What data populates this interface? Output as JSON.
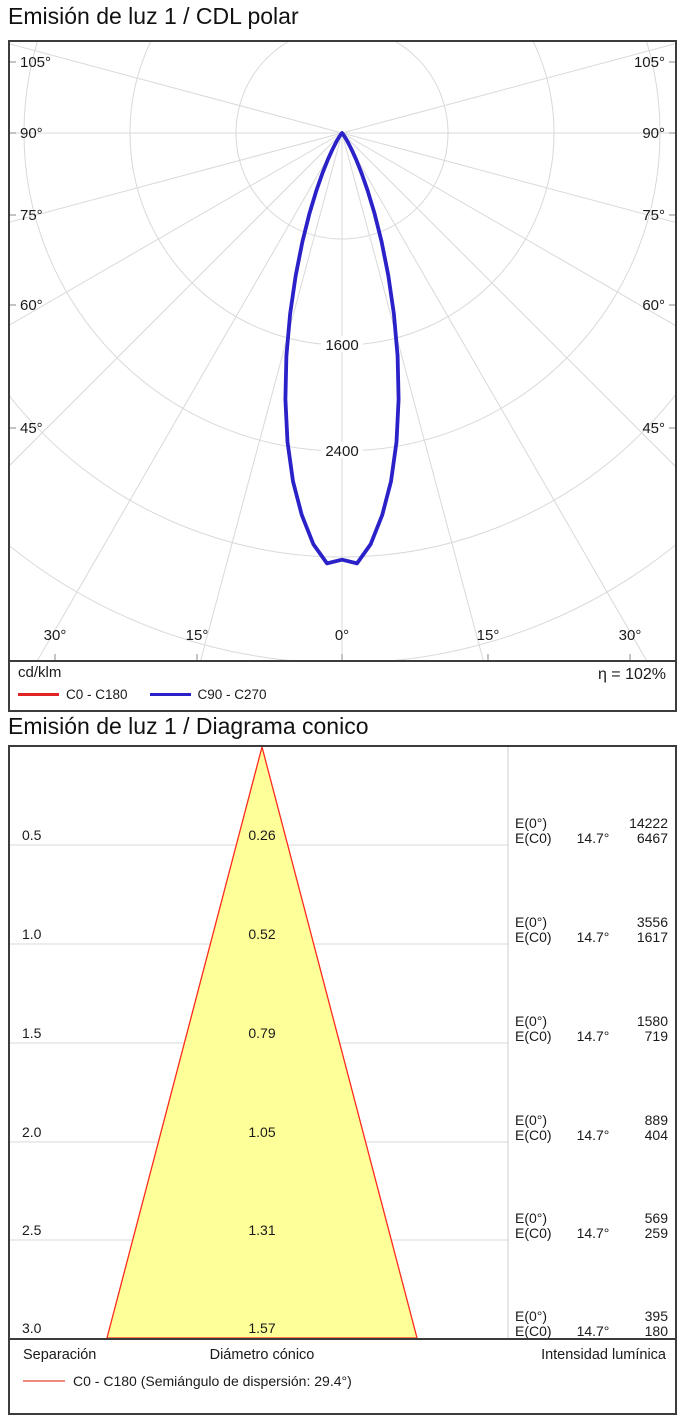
{
  "colors": {
    "curve_c0_c180": "#e02424",
    "curve_c90_c270": "#2a22c8",
    "cone_fill": "#ffff99",
    "cone_stroke": "#fb2b1c",
    "cone_legend_line": "#ee8a7e",
    "grid": "#d9d9d9",
    "frame": "#3c3c3c"
  },
  "polar": {
    "title": "Emisión de luz 1 / CDL polar",
    "unit_label": "cd/klm",
    "efficiency": "η = 102%",
    "legend": [
      {
        "label": "C0 - C180",
        "color": "#e02424"
      },
      {
        "label": "C90 - C270",
        "color": "#2a22c8"
      }
    ],
    "angle_labels_left": [
      "105°",
      "90°",
      "75°",
      "60°",
      "45°"
    ],
    "angle_labels_right": [
      "105°",
      "90°",
      "75°",
      "60°",
      "45°"
    ],
    "angle_labels_bottom": [
      "30°",
      "15°",
      "0°",
      "15°",
      "30°"
    ],
    "ring_labels": [
      {
        "label": "1600",
        "value": 1600
      },
      {
        "label": "2400",
        "value": 2400
      }
    ]
  },
  "cone": {
    "title": "Emisión de luz 1 / Diagrama conico",
    "e0_label": "E(0°)",
    "ec0_label": "E(C0)",
    "rows": [
      {
        "separation": "0.5",
        "diameter": "0.26",
        "angle": "14.7°",
        "e0": "14222",
        "ec0": "6467"
      },
      {
        "separation": "1.0",
        "diameter": "0.52",
        "angle": "14.7°",
        "e0": "3556",
        "ec0": "1617"
      },
      {
        "separation": "1.5",
        "diameter": "0.79",
        "angle": "14.7°",
        "e0": "1580",
        "ec0": "719"
      },
      {
        "separation": "2.0",
        "diameter": "1.05",
        "angle": "14.7°",
        "e0": "889",
        "ec0": "404"
      },
      {
        "separation": "2.5",
        "diameter": "1.31",
        "angle": "14.7°",
        "e0": "569",
        "ec0": "259"
      },
      {
        "separation": "3.0",
        "diameter": "1.57",
        "angle": "14.7°",
        "e0": "395",
        "ec0": "180"
      }
    ],
    "footer": {
      "separation": "Separación",
      "diameter": "Diámetro cónico",
      "intensity": "Intensidad lumínica"
    },
    "legend_label": "C0 - C180 (Semiángulo de dispersión: 29.4°)"
  },
  "chart_data": [
    {
      "type": "line",
      "subtype": "polar-intensity-curve",
      "title": "Emisión de luz 1 / CDL polar",
      "units": "cd/klm",
      "efficiency_percent": 102,
      "angle_grid_deg": [
        0,
        15,
        30,
        45,
        60,
        75,
        90,
        105
      ],
      "ring_values_cd_klm": [
        800,
        1600,
        2400,
        3200,
        4000
      ],
      "labeled_rings": [
        1600,
        2400
      ],
      "series": [
        {
          "name": "C0 - C180",
          "color": "#e02424",
          "gamma_deg": [
            0,
            2,
            4,
            6,
            8,
            10,
            12,
            14,
            16,
            18,
            20,
            22,
            24,
            26,
            28,
            30,
            32,
            34,
            36,
            38,
            40,
            42,
            45
          ],
          "intensity_cd_klm": [
            3220,
            3250,
            3110,
            2900,
            2655,
            2368,
            2055,
            1734,
            1421,
            1131,
            873,
            654,
            475,
            334,
            228,
            150,
            96,
            59,
            35,
            20,
            11,
            6,
            0
          ]
        },
        {
          "name": "C90 - C270",
          "color": "#2a22c8",
          "gamma_deg": [
            0,
            2,
            4,
            6,
            8,
            10,
            12,
            14,
            16,
            18,
            20,
            22,
            24,
            26,
            28,
            30,
            32,
            34,
            36,
            38,
            40,
            42,
            45
          ],
          "intensity_cd_klm": [
            3220,
            3250,
            3110,
            2900,
            2655,
            2368,
            2055,
            1734,
            1421,
            1131,
            873,
            654,
            475,
            334,
            228,
            150,
            96,
            59,
            35,
            20,
            11,
            6,
            0
          ]
        }
      ]
    },
    {
      "type": "table",
      "subtype": "cone-diagram",
      "title": "Emisión de luz 1 / Diagrama conico",
      "beam_half_angle_deg": 14.7,
      "semiangle_dispersion_deg": 29.4,
      "columns": [
        "Separación (m)",
        "Diámetro cónico (m)",
        "E(0°) (lx)",
        "E(C0) (lx)"
      ],
      "rows": [
        [
          0.5,
          0.26,
          14222,
          6467
        ],
        [
          1.0,
          0.52,
          3556,
          1617
        ],
        [
          1.5,
          0.79,
          1580,
          719
        ],
        [
          2.0,
          1.05,
          889,
          404
        ],
        [
          2.5,
          1.31,
          569,
          259
        ],
        [
          3.0,
          1.57,
          395,
          180
        ]
      ]
    }
  ]
}
